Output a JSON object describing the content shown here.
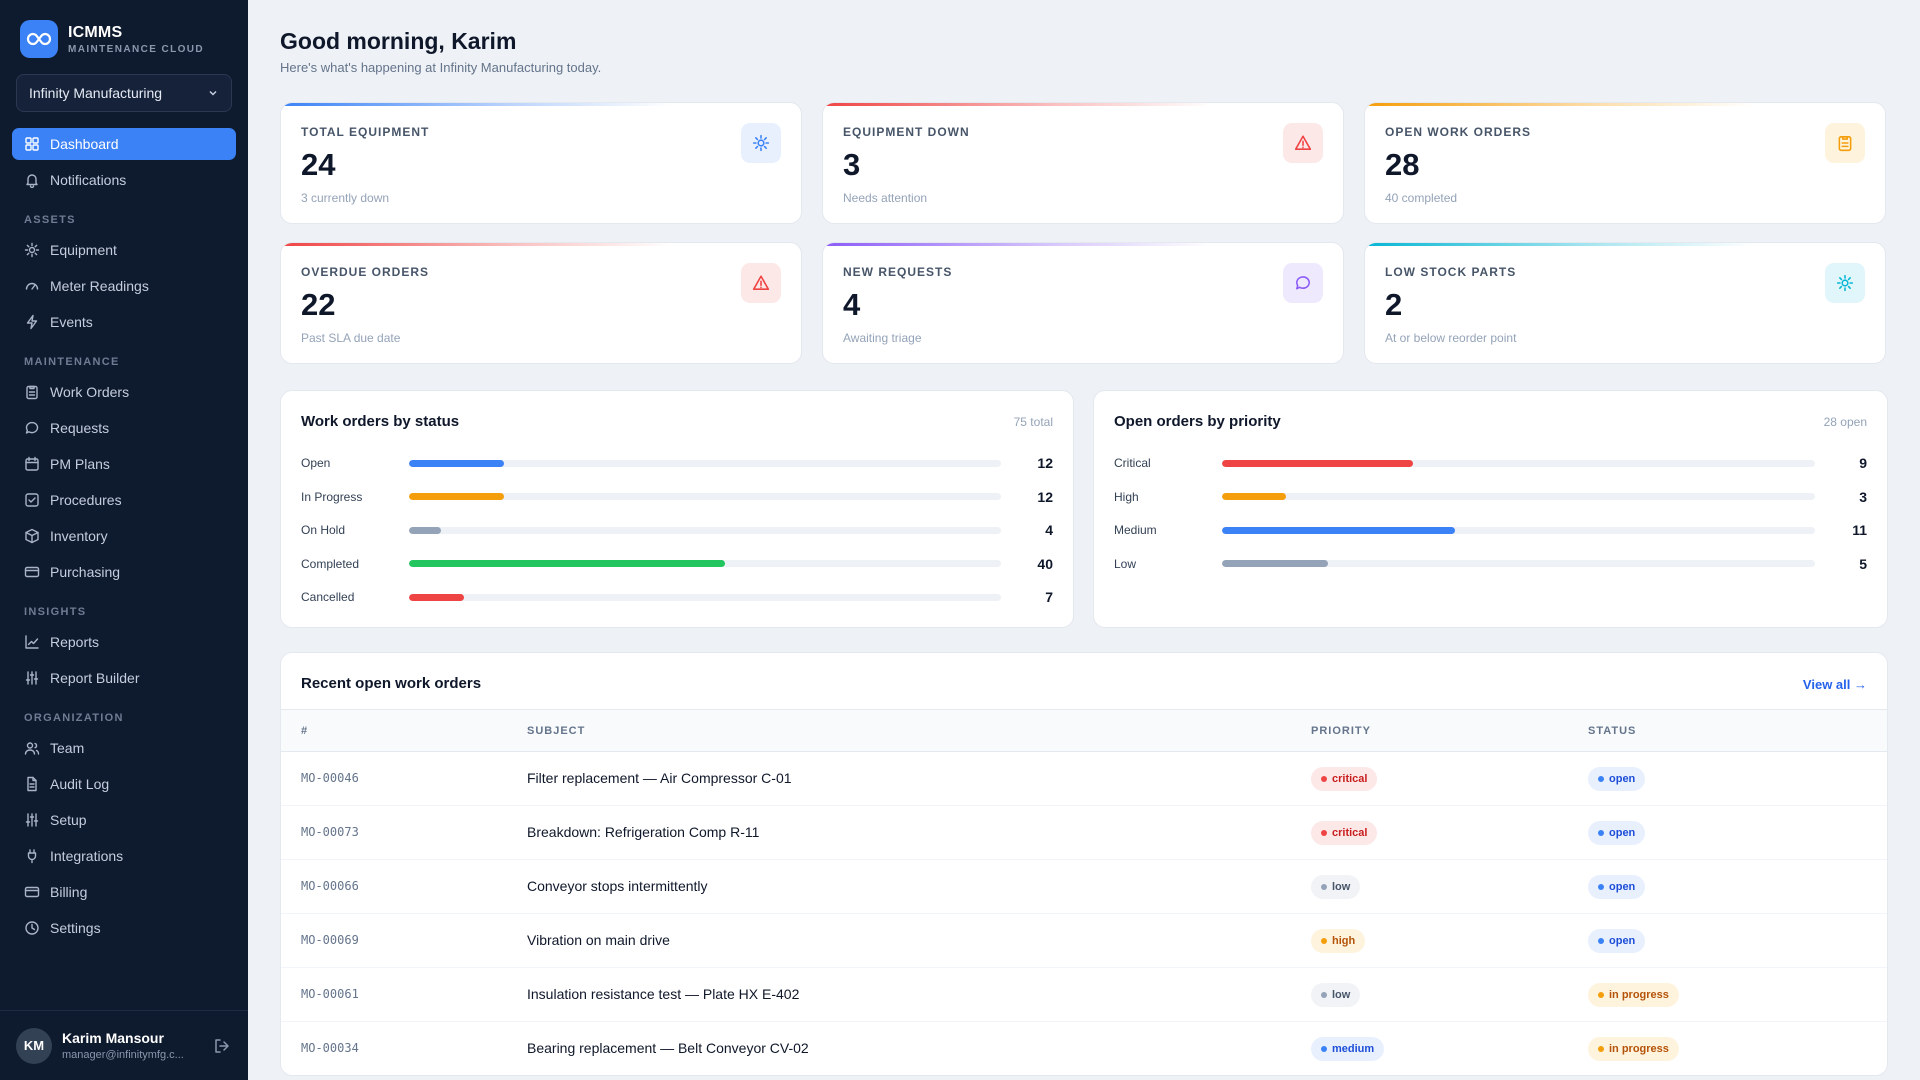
{
  "brand": {
    "name": "ICMMS",
    "sub": "MAINTENANCE CLOUD"
  },
  "org": {
    "selected": "Infinity Manufacturing"
  },
  "nav": {
    "top": [
      {
        "label": "Dashboard",
        "icon": "dashboard-icon",
        "active": true
      },
      {
        "label": "Notifications",
        "icon": "bell-icon"
      }
    ],
    "sections": [
      {
        "title": "ASSETS",
        "items": [
          {
            "label": "Equipment",
            "icon": "gear-icon"
          },
          {
            "label": "Meter Readings",
            "icon": "gauge-icon"
          },
          {
            "label": "Events",
            "icon": "bolt-icon"
          }
        ]
      },
      {
        "title": "MAINTENANCE",
        "items": [
          {
            "label": "Work Orders",
            "icon": "clipboard-icon"
          },
          {
            "label": "Requests",
            "icon": "chat-icon"
          },
          {
            "label": "PM Plans",
            "icon": "calendar-icon"
          },
          {
            "label": "Procedures",
            "icon": "checkbox-icon"
          },
          {
            "label": "Inventory",
            "icon": "box-icon"
          },
          {
            "label": "Purchasing",
            "icon": "card-icon"
          }
        ]
      },
      {
        "title": "INSIGHTS",
        "items": [
          {
            "label": "Reports",
            "icon": "chart-icon"
          },
          {
            "label": "Report Builder",
            "icon": "sliders-icon"
          }
        ]
      },
      {
        "title": "ORGANIZATION",
        "items": [
          {
            "label": "Team",
            "icon": "users-icon"
          },
          {
            "label": "Audit Log",
            "icon": "document-icon"
          },
          {
            "label": "Setup",
            "icon": "sliders-icon"
          },
          {
            "label": "Integrations",
            "icon": "plug-icon"
          },
          {
            "label": "Billing",
            "icon": "card-icon"
          },
          {
            "label": "Settings",
            "icon": "clock-icon"
          }
        ]
      }
    ]
  },
  "user": {
    "initials": "KM",
    "name": "Karim Mansour",
    "email": "manager@infinitymfg.c..."
  },
  "header": {
    "greeting": "Good morning, Karim",
    "sub": "Here's what's happening at Infinity Manufacturing today."
  },
  "stats": [
    {
      "label": "TOTAL EQUIPMENT",
      "value": "24",
      "note": "3 currently down",
      "icon": "gear-icon",
      "accent": "#3b82f6"
    },
    {
      "label": "EQUIPMENT DOWN",
      "value": "3",
      "note": "Needs attention",
      "icon": "warning-icon",
      "accent": "#ef4444"
    },
    {
      "label": "OPEN WORK ORDERS",
      "value": "28",
      "note": "40 completed",
      "icon": "clipboard-icon",
      "accent": "#f59e0b"
    },
    {
      "label": "OVERDUE ORDERS",
      "value": "22",
      "note": "Past SLA due date",
      "icon": "warning-icon",
      "accent": "#ef4444"
    },
    {
      "label": "NEW REQUESTS",
      "value": "4",
      "note": "Awaiting triage",
      "icon": "chat-icon",
      "accent": "#8b5cf6"
    },
    {
      "label": "LOW STOCK PARTS",
      "value": "2",
      "note": "At or below reorder point",
      "icon": "gear-icon",
      "accent": "#06b6d4"
    }
  ],
  "status_chart": {
    "title": "Work orders by status",
    "meta": "75 total",
    "max": 75,
    "rows": [
      {
        "label": "Open",
        "value": 12,
        "color": "#3b82f6"
      },
      {
        "label": "In Progress",
        "value": 12,
        "color": "#f59e0b"
      },
      {
        "label": "On Hold",
        "value": 4,
        "color": "#94a3b8"
      },
      {
        "label": "Completed",
        "value": 40,
        "color": "#22c55e"
      },
      {
        "label": "Cancelled",
        "value": 7,
        "color": "#ef4444"
      }
    ]
  },
  "priority_chart": {
    "title": "Open orders by priority",
    "meta": "28 open",
    "max": 28,
    "rows": [
      {
        "label": "Critical",
        "value": 9,
        "color": "#ef4444"
      },
      {
        "label": "High",
        "value": 3,
        "color": "#f59e0b"
      },
      {
        "label": "Medium",
        "value": 11,
        "color": "#3b82f6"
      },
      {
        "label": "Low",
        "value": 5,
        "color": "#94a3b8"
      }
    ]
  },
  "recent": {
    "title": "Recent open work orders",
    "view_all": "View all →",
    "columns": [
      "#",
      "SUBJECT",
      "PRIORITY",
      "STATUS"
    ],
    "rows": [
      {
        "num": "MO-00046",
        "subject": "Filter replacement — Air Compressor C-01",
        "priority": "critical",
        "status": "open"
      },
      {
        "num": "MO-00073",
        "subject": "Breakdown: Refrigeration Comp R-11",
        "priority": "critical",
        "status": "open"
      },
      {
        "num": "MO-00066",
        "subject": "Conveyor stops intermittently",
        "priority": "low",
        "status": "open"
      },
      {
        "num": "MO-00069",
        "subject": "Vibration on main drive",
        "priority": "high",
        "status": "open"
      },
      {
        "num": "MO-00061",
        "subject": "Insulation resistance test — Plate HX E-402",
        "priority": "low",
        "status": "in progress"
      },
      {
        "num": "MO-00034",
        "subject": "Bearing replacement — Belt Conveyor CV-02",
        "priority": "medium",
        "status": "in progress"
      }
    ]
  }
}
